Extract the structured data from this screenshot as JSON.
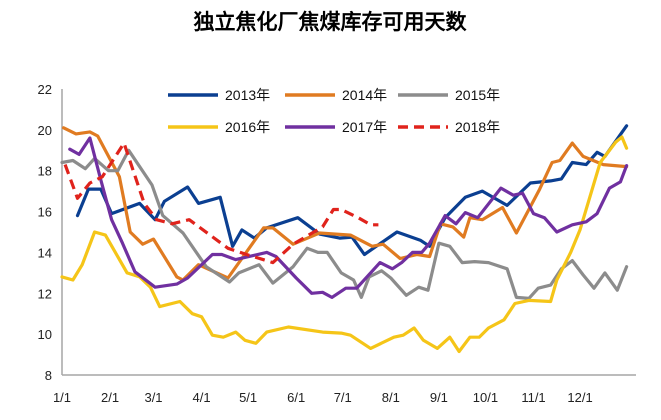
{
  "chart_data": {
    "type": "line",
    "title": "独立焦化厂焦煤库存可用天数",
    "xlabel": "",
    "ylabel": "",
    "ylim": [
      8,
      22
    ],
    "yticks": [
      "8",
      "10",
      "12",
      "14",
      "16",
      "18",
      "20",
      "22"
    ],
    "xticks": [
      "1/1",
      "2/1",
      "3/1",
      "4/1",
      "5/1",
      "6/1",
      "7/1",
      "8/1",
      "9/1",
      "10/1",
      "11/1",
      "12/1"
    ],
    "grid": false,
    "legend_position": "top",
    "series": [
      {
        "name": "2013年",
        "color": "#0b3f91",
        "dash": false,
        "x": [
          "1/11",
          "1/18",
          "1/26",
          "2/2",
          "2/20",
          "3/2",
          "3/8",
          "3/23",
          "3/30",
          "4/13",
          "4/21",
          "4/27",
          "5/5",
          "5/13",
          "6/2",
          "6/16",
          "6/29",
          "7/7",
          "7/15",
          "8/5",
          "8/20",
          "8/26",
          "9/5",
          "9/18",
          "9/29",
          "10/15",
          "10/30",
          "11/12",
          "11/19",
          "11/26",
          "12/5",
          "12/12",
          "12/17",
          "12/31"
        ],
        "y": [
          15.8,
          17.1,
          17.1,
          15.9,
          16.4,
          15.6,
          16.5,
          17.2,
          16.4,
          16.7,
          14.3,
          15.1,
          14.7,
          15.2,
          15.7,
          14.9,
          14.7,
          14.75,
          13.9,
          15.0,
          14.6,
          14.3,
          15.7,
          16.7,
          17.0,
          16.3,
          17.4,
          17.5,
          17.6,
          18.4,
          18.3,
          18.9,
          18.7,
          20.2
        ]
      },
      {
        "name": "2014年",
        "color": "#e07b21",
        "dash": false,
        "x": [
          "1/2",
          "1/10",
          "1/19",
          "1/24",
          "2/7",
          "2/14",
          "2/22",
          "3/1",
          "3/16",
          "3/20",
          "3/30",
          "4/18",
          "5/11",
          "5/17",
          "5/30",
          "6/16",
          "7/6",
          "7/20",
          "7/27",
          "8/7",
          "8/18",
          "8/26",
          "9/2",
          "9/10",
          "9/17",
          "9/21",
          "9/29",
          "10/12",
          "10/21",
          "11/5",
          "11/13",
          "11/18",
          "11/26",
          "12/3",
          "12/16",
          "12/31"
        ],
        "y": [
          20.1,
          19.8,
          19.9,
          19.7,
          17.7,
          15.0,
          14.4,
          14.65,
          12.8,
          12.65,
          13.4,
          12.75,
          15.2,
          15.2,
          14.4,
          14.95,
          14.85,
          14.3,
          14.4,
          13.7,
          13.9,
          13.8,
          15.4,
          15.25,
          14.75,
          15.7,
          15.6,
          16.2,
          14.95,
          17.1,
          18.4,
          18.5,
          19.35,
          18.7,
          18.3,
          18.2
        ]
      },
      {
        "name": "2015年",
        "color": "#8c8c8c",
        "dash": false,
        "x": [
          "1/1",
          "1/8",
          "1/16",
          "1/22",
          "1/31",
          "2/6",
          "2/13",
          "2/28",
          "3/7",
          "3/20",
          "4/4",
          "4/19",
          "4/25",
          "5/8",
          "5/17",
          "5/30",
          "6/8",
          "6/15",
          "6/21",
          "6/30",
          "7/8",
          "7/13",
          "7/18",
          "7/26",
          "8/1",
          "8/11",
          "8/19",
          "8/25",
          "9/1",
          "9/8",
          "9/16",
          "9/24",
          "10/3",
          "10/15",
          "10/21",
          "10/29",
          "11/4",
          "11/12",
          "11/19",
          "11/26",
          "12/3",
          "12/10",
          "12/17",
          "12/25",
          "12/31"
        ],
        "y": [
          18.4,
          18.5,
          18.1,
          18.6,
          18.0,
          18.0,
          19.0,
          17.3,
          15.8,
          14.95,
          13.3,
          12.55,
          13.0,
          13.4,
          12.5,
          13.3,
          14.2,
          14.0,
          14.0,
          13.0,
          12.65,
          11.8,
          12.8,
          13.1,
          12.75,
          11.9,
          12.3,
          12.15,
          14.45,
          14.3,
          13.5,
          13.55,
          13.5,
          13.2,
          11.8,
          11.75,
          12.25,
          12.4,
          13.2,
          13.6,
          12.9,
          12.25,
          13.0,
          12.15,
          13.3
        ]
      },
      {
        "name": "2016年",
        "color": "#f5c518",
        "dash": false,
        "x": [
          "1/1",
          "1/8",
          "1/14",
          "1/22",
          "1/29",
          "2/12",
          "2/20",
          "2/27",
          "3/5",
          "3/18",
          "3/26",
          "4/1",
          "4/8",
          "4/15",
          "4/23",
          "4/29",
          "5/6",
          "5/13",
          "5/27",
          "6/18",
          "6/30",
          "7/6",
          "7/19",
          "8/3",
          "8/9",
          "8/16",
          "8/22",
          "8/31",
          "9/8",
          "9/14",
          "9/21",
          "9/27",
          "10/3",
          "10/13",
          "10/20",
          "10/29",
          "11/12",
          "11/16",
          "11/25",
          "12/1",
          "12/14",
          "12/24",
          "12/28",
          "12/31"
        ],
        "y": [
          12.8,
          12.65,
          13.4,
          15.0,
          14.85,
          13.0,
          12.8,
          12.3,
          11.35,
          11.6,
          11.0,
          10.85,
          9.95,
          9.85,
          10.1,
          9.7,
          9.55,
          10.1,
          10.35,
          10.1,
          10.05,
          9.95,
          9.3,
          9.85,
          9.95,
          10.3,
          9.7,
          9.3,
          9.85,
          9.15,
          9.85,
          9.85,
          10.3,
          10.7,
          11.5,
          11.65,
          11.6,
          12.65,
          14.0,
          15.1,
          18.4,
          19.4,
          19.65,
          19.1
        ]
      },
      {
        "name": "2017年",
        "color": "#7030a0",
        "dash": false,
        "x": [
          "1/6",
          "1/12",
          "1/19",
          "1/26",
          "2/2",
          "2/9",
          "2/17",
          "3/2",
          "3/16",
          "3/23",
          "4/8",
          "4/14",
          "4/23",
          "5/13",
          "5/19",
          "6/1",
          "6/11",
          "6/18",
          "6/24",
          "7/3",
          "7/10",
          "7/25",
          "8/2",
          "8/8",
          "8/15",
          "8/21",
          "8/26",
          "9/5",
          "9/12",
          "9/18",
          "9/26",
          "10/11",
          "10/19",
          "10/25",
          "11/1",
          "11/8",
          "11/16",
          "11/26",
          "12/5",
          "12/12",
          "12/20",
          "12/27",
          "12/31"
        ],
        "y": [
          19.05,
          18.8,
          19.6,
          17.55,
          15.6,
          14.45,
          13.05,
          12.3,
          12.45,
          12.75,
          13.9,
          13.9,
          13.65,
          14.0,
          13.8,
          12.75,
          12.0,
          12.05,
          11.8,
          12.25,
          12.25,
          13.5,
          13.2,
          13.5,
          14.0,
          14.0,
          14.45,
          15.8,
          15.4,
          15.95,
          15.7,
          17.15,
          16.8,
          16.9,
          15.9,
          15.7,
          15.0,
          15.35,
          15.5,
          15.9,
          17.15,
          17.45,
          18.25
        ]
      },
      {
        "name": "2018年",
        "color": "#e0231c",
        "dash": true,
        "x": [
          "1/3",
          "1/11",
          "1/19",
          "1/27",
          "2/10",
          "2/23",
          "3/3",
          "3/13",
          "3/24",
          "4/18",
          "4/30",
          "5/17",
          "5/30",
          "6/18",
          "6/25",
          "6/30",
          "7/11",
          "7/19",
          "7/24"
        ],
        "y": [
          18.3,
          16.65,
          17.4,
          17.7,
          19.35,
          16.4,
          15.6,
          15.4,
          15.6,
          14.2,
          13.9,
          13.5,
          14.4,
          15.25,
          16.1,
          16.1,
          15.7,
          15.35,
          15.35
        ]
      }
    ]
  }
}
